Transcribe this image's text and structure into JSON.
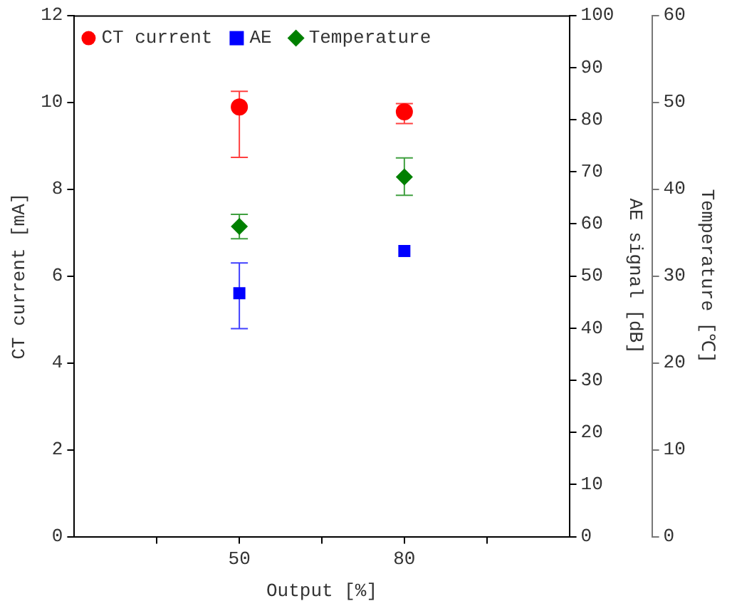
{
  "chart_data": {
    "type": "scatter",
    "xlabel": "Output [%]",
    "ylabel": "CT current [mA]",
    "y2label": "AE signal [dB]",
    "y3label": "Temperature [℃]",
    "x": [
      50,
      80
    ],
    "xlim": [
      20,
      110
    ],
    "xticks": [
      {
        "value": 35,
        "label": null
      },
      50,
      {
        "value": 65,
        "label": null
      },
      80,
      {
        "value": 95,
        "label": null
      }
    ],
    "ylim": [
      0,
      12
    ],
    "yticks": [
      0,
      2,
      4,
      6,
      8,
      10,
      12
    ],
    "y2lim": [
      0,
      100
    ],
    "y2ticks": [
      0,
      10,
      20,
      30,
      40,
      50,
      60,
      70,
      80,
      90,
      100
    ],
    "y3lim": [
      0,
      60
    ],
    "y3ticks": [
      0,
      10,
      20,
      30,
      40,
      50,
      60
    ],
    "legend": "top left",
    "grid": false,
    "series": [
      {
        "name": "CT current",
        "color": "#ff0000",
        "marker": "circle",
        "values": [
          9.89,
          9.78
        ],
        "errors": [
          [
            8.73,
            10.25
          ],
          [
            9.51,
            9.97
          ]
        ]
      },
      {
        "name": "AE",
        "color": "#0000ff",
        "marker": "square",
        "axis": "y2",
        "values": [
          46.7,
          54.8
        ],
        "errors": [
          [
            39.9,
            52.5
          ],
          null
        ]
      },
      {
        "name": "Temperature",
        "color": "#008000",
        "marker": "diamond",
        "axis": "y3",
        "values": [
          35.7,
          41.4
        ],
        "errors": [
          [
            34.3,
            37.1
          ],
          [
            39.3,
            43.6
          ]
        ]
      }
    ]
  }
}
